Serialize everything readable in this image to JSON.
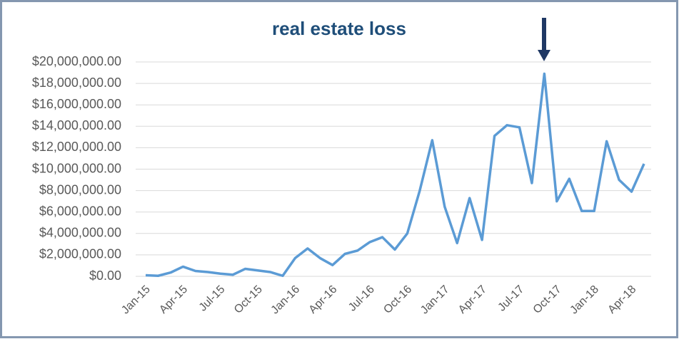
{
  "chart_data": {
    "type": "line",
    "title": "real estate loss",
    "categories": [
      "Jan-15",
      null,
      null,
      "Apr-15",
      null,
      null,
      "Jul-15",
      null,
      null,
      "Oct-15",
      null,
      null,
      "Jan-16",
      null,
      null,
      "Apr-16",
      null,
      null,
      "Jul-16",
      null,
      null,
      "Oct-16",
      null,
      null,
      "Jan-17",
      null,
      null,
      "Apr-17",
      null,
      null,
      "Jul-17",
      null,
      null,
      "Oct-17",
      null,
      null,
      "Jan-18",
      null,
      null,
      "Apr-18",
      null
    ],
    "series": [
      {
        "name": "real estate loss",
        "color": "#5b9bd5",
        "values": [
          100000,
          50000,
          350000,
          900000,
          500000,
          400000,
          250000,
          150000,
          700000,
          550000,
          400000,
          50000,
          1700000,
          2600000,
          1700000,
          1050000,
          2100000,
          2400000,
          3200000,
          3650000,
          2500000,
          4000000,
          8000000,
          12700000,
          6500000,
          3100000,
          7300000,
          3400000,
          13100000,
          14100000,
          13900000,
          8700000,
          18900000,
          7000000,
          9100000,
          6100000,
          6100000,
          12600000,
          9000000,
          7900000,
          10500000
        ]
      }
    ],
    "ylim": [
      0,
      20000000
    ],
    "yticks": [
      {
        "value": 0,
        "label": "$0.00"
      },
      {
        "value": 2000000,
        "label": "$2,000,000.00"
      },
      {
        "value": 4000000,
        "label": "$4,000,000.00"
      },
      {
        "value": 6000000,
        "label": "$6,000,000.00"
      },
      {
        "value": 8000000,
        "label": "$8,000,000.00"
      },
      {
        "value": 10000000,
        "label": "$10,000,000.00"
      },
      {
        "value": 12000000,
        "label": "$12,000,000.00"
      },
      {
        "value": 14000000,
        "label": "$14,000,000.00"
      },
      {
        "value": 16000000,
        "label": "$16,000,000.00"
      },
      {
        "value": 18000000,
        "label": "$18,000,000.00"
      },
      {
        "value": 20000000,
        "label": "$20,000,000.00"
      }
    ],
    "grid": true
  }
}
